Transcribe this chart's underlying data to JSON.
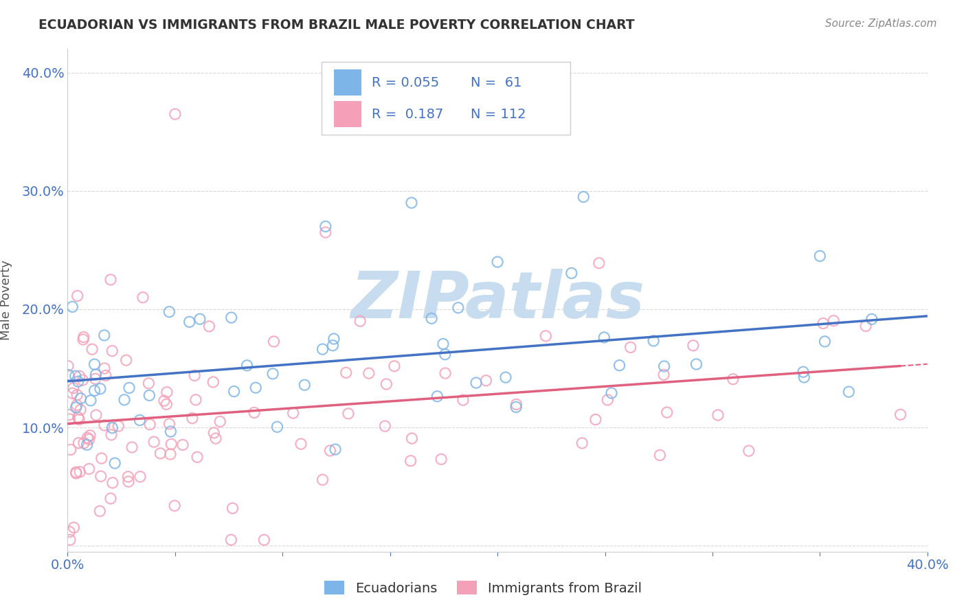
{
  "title": "ECUADORIAN VS IMMIGRANTS FROM BRAZIL MALE POVERTY CORRELATION CHART",
  "source": "Source: ZipAtlas.com",
  "ylabel": "Male Poverty",
  "xlim": [
    0.0,
    0.4
  ],
  "ylim": [
    -0.005,
    0.42
  ],
  "color_blue": "#7EB5E8",
  "color_pink": "#F4A0B8",
  "line_color_blue": "#4472C4",
  "line_color_pink": "#E06080",
  "background_color": "#ffffff",
  "watermark_color": "#C8DCF0",
  "watermark_text": "ZIPatlas",
  "legend_R1": "R = 0.055",
  "legend_N1": "N =  61",
  "legend_R2": "R =  0.187",
  "legend_N2": "N = 112",
  "legend_text_color": "#4472C4",
  "title_color": "#333333",
  "source_color": "#888888",
  "axis_label_color": "#555555",
  "tick_color": "#4472C4"
}
